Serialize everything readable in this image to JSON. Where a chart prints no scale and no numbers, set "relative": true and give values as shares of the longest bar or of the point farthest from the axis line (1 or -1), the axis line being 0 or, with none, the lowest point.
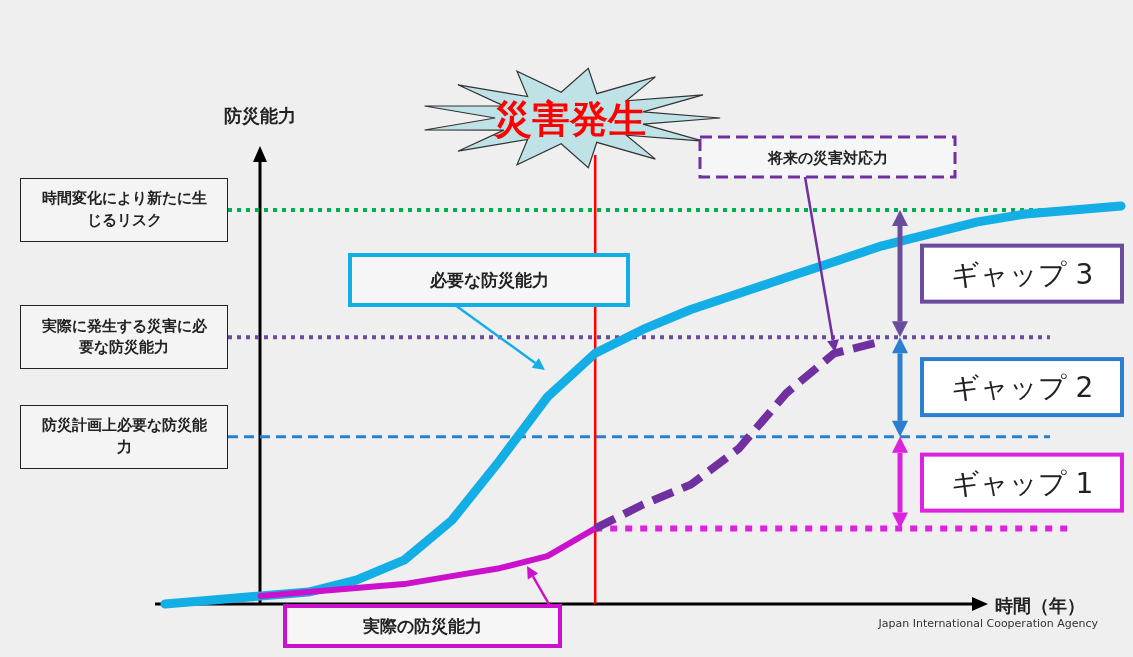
{
  "chart_data": {
    "type": "line",
    "relative": true,
    "xlabel": "時間（年）",
    "ylabel": "防災能力",
    "categories": [
      null,
      null,
      null,
      null,
      null,
      null,
      null,
      null,
      null,
      null,
      null,
      null,
      null,
      null,
      null,
      null,
      null,
      null,
      null,
      null,
      null
    ],
    "series": [
      {
        "name": "必要な防災能力",
        "color": "#14aee6",
        "values": [
          0,
          0.01,
          0.02,
          0.03,
          0.06,
          0.11,
          0.21,
          0.36,
          0.52,
          0.63,
          0.69,
          0.74,
          0.78,
          0.82,
          0.86,
          0.9,
          0.93,
          0.96,
          0.98,
          0.99,
          1.0
        ]
      },
      {
        "name": "実際の防災能力",
        "color": "#cc11cc",
        "values": [
          null,
          null,
          0.02,
          0.03,
          0.04,
          0.05,
          0.07,
          0.09,
          0.12,
          0.19,
          null,
          null,
          null,
          null,
          null,
          null,
          null,
          null,
          null,
          null,
          null
        ]
      },
      {
        "name": "将来の災害対応力",
        "color": "#7030a0",
        "line_style": "dashed",
        "values": [
          null,
          null,
          null,
          null,
          null,
          null,
          null,
          null,
          null,
          0.19,
          0.25,
          0.3,
          0.39,
          0.53,
          0.63,
          0.66,
          null,
          null,
          null,
          null,
          null
        ]
      }
    ],
    "ref_lines": [
      {
        "axis": "y",
        "value": 0.19,
        "color": "#dd22dd",
        "line_style": "dotted"
      },
      {
        "axis": "y",
        "value": 0.42,
        "label": "防災計画上必要な防災能力",
        "color": "#2a7fd0",
        "line_style": "dashed"
      },
      {
        "axis": "y",
        "value": 0.67,
        "label": "実際に発生する災害に必要な防災能力",
        "color": "#6a4c9c",
        "line_style": "dotted"
      },
      {
        "axis": "y",
        "value": 0.99,
        "label": "時間変化により新たに生じるリスク",
        "color": "#00b050",
        "line_style": "dotted"
      }
    ],
    "title": "災害発生",
    "annotations": [
      "ギャップ 1",
      "ギャップ 2",
      "ギャップ 3",
      "Japan International Cooperation Agency"
    ],
    "legend": false,
    "marker": "none",
    "line_style": "solid"
  }
}
